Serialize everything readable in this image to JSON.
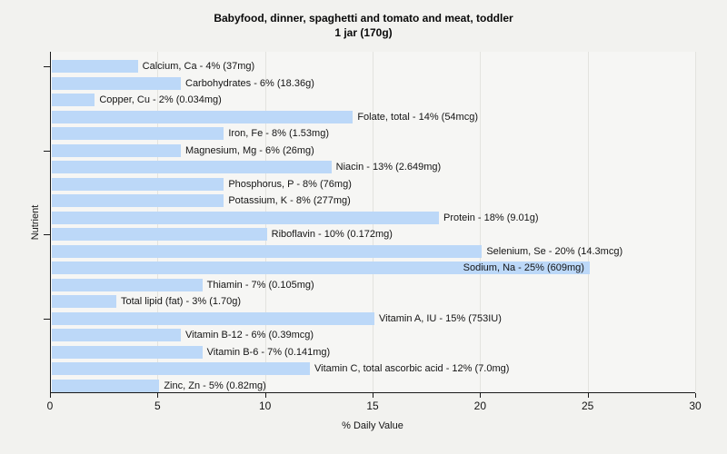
{
  "chart_data": {
    "type": "bar",
    "orientation": "horizontal",
    "title": "Babyfood, dinner, spaghetti and tomato and meat, toddler",
    "subtitle": "1 jar (170g)",
    "xlabel": "% Daily Value",
    "ylabel": "Nutrient",
    "xlim": [
      0,
      30
    ],
    "xticks": [
      0,
      5,
      10,
      15,
      20,
      25,
      30
    ],
    "grid": "vertical-major",
    "legend": "none",
    "bars": [
      {
        "nutrient": "Calcium, Ca",
        "percent_dv": 4,
        "amount": "37mg",
        "label": "Calcium, Ca - 4% (37mg)"
      },
      {
        "nutrient": "Carbohydrates",
        "percent_dv": 6,
        "amount": "18.36g",
        "label": "Carbohydrates - 6% (18.36g)"
      },
      {
        "nutrient": "Copper, Cu",
        "percent_dv": 2,
        "amount": "0.034mg",
        "label": "Copper, Cu - 2% (0.034mg)"
      },
      {
        "nutrient": "Folate, total",
        "percent_dv": 14,
        "amount": "54mcg",
        "label": "Folate, total - 14% (54mcg)"
      },
      {
        "nutrient": "Iron, Fe",
        "percent_dv": 8,
        "amount": "1.53mg",
        "label": "Iron, Fe - 8% (1.53mg)"
      },
      {
        "nutrient": "Magnesium, Mg",
        "percent_dv": 6,
        "amount": "26mg",
        "label": "Magnesium, Mg - 6% (26mg)"
      },
      {
        "nutrient": "Niacin",
        "percent_dv": 13,
        "amount": "2.649mg",
        "label": "Niacin - 13% (2.649mg)"
      },
      {
        "nutrient": "Phosphorus, P",
        "percent_dv": 8,
        "amount": "76mg",
        "label": "Phosphorus, P - 8% (76mg)"
      },
      {
        "nutrient": "Potassium, K",
        "percent_dv": 8,
        "amount": "277mg",
        "label": "Potassium, K - 8% (277mg)"
      },
      {
        "nutrient": "Protein",
        "percent_dv": 18,
        "amount": "9.01g",
        "label": "Protein - 18% (9.01g)"
      },
      {
        "nutrient": "Riboflavin",
        "percent_dv": 10,
        "amount": "0.172mg",
        "label": "Riboflavin - 10% (0.172mg)"
      },
      {
        "nutrient": "Selenium, Se",
        "percent_dv": 20,
        "amount": "14.3mcg",
        "label": "Selenium, Se - 20% (14.3mcg)"
      },
      {
        "nutrient": "Sodium, Na",
        "percent_dv": 25,
        "amount": "609mg",
        "label": "Sodium, Na - 25% (609mg)"
      },
      {
        "nutrient": "Thiamin",
        "percent_dv": 7,
        "amount": "0.105mg",
        "label": "Thiamin - 7% (0.105mg)"
      },
      {
        "nutrient": "Total lipid (fat)",
        "percent_dv": 3,
        "amount": "1.70g",
        "label": "Total lipid (fat) - 3% (1.70g)"
      },
      {
        "nutrient": "Vitamin A, IU",
        "percent_dv": 15,
        "amount": "753IU",
        "label": "Vitamin A, IU - 15% (753IU)"
      },
      {
        "nutrient": "Vitamin B-12",
        "percent_dv": 6,
        "amount": "0.39mcg",
        "label": "Vitamin B-12 - 6% (0.39mcg)"
      },
      {
        "nutrient": "Vitamin B-6",
        "percent_dv": 7,
        "amount": "0.141mg",
        "label": "Vitamin B-6 - 7% (0.141mg)"
      },
      {
        "nutrient": "Vitamin C, total ascorbic acid",
        "percent_dv": 12,
        "amount": "7.0mg",
        "label": "Vitamin C, total ascorbic acid - 12% (7.0mg)"
      },
      {
        "nutrient": "Zinc, Zn",
        "percent_dv": 5,
        "amount": "0.82mg",
        "label": "Zinc, Zn - 5% (0.82mg)"
      }
    ]
  },
  "colors": {
    "page_bg": "#f2f2ef",
    "plot_bg": "#f6f6f4",
    "bar_fill": "#bcd8f8",
    "gridline": "#e3e3df",
    "axis": "#1a1a1a",
    "text": "#141414"
  }
}
